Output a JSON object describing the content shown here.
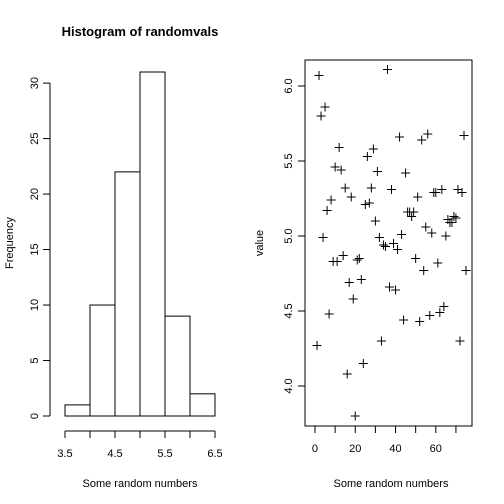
{
  "chart_data": [
    {
      "type": "bar",
      "subtype": "histogram",
      "title": "Histogram of randomvals",
      "xlabel": "Some random numbers",
      "ylabel": "Frequency",
      "bins": [
        {
          "from": 3.5,
          "to": 4.0,
          "count": 1
        },
        {
          "from": 4.0,
          "to": 4.5,
          "count": 10
        },
        {
          "from": 4.5,
          "to": 5.0,
          "count": 22
        },
        {
          "from": 5.0,
          "to": 5.5,
          "count": 31
        },
        {
          "from": 5.5,
          "to": 6.0,
          "count": 9
        },
        {
          "from": 6.0,
          "to": 6.5,
          "count": 2
        }
      ],
      "xlim": [
        3.5,
        6.5
      ],
      "ylim": [
        0,
        31
      ],
      "xticks": [
        3.5,
        4.0,
        4.5,
        5.0,
        5.5,
        6.0,
        6.5
      ],
      "xtick_labels": [
        "3.5",
        "",
        "4.5",
        "",
        "5.5",
        "",
        "6.5"
      ],
      "yticks": [
        0,
        5,
        10,
        15,
        20,
        25,
        30
      ],
      "ytick_labels": [
        "0",
        "5",
        "10",
        "15",
        "20",
        "25",
        "30"
      ],
      "frame": false
    },
    {
      "type": "scatter",
      "title": "",
      "xlabel": "Some random numbers",
      "ylabel": "value",
      "marker": "+",
      "xlim": [
        1,
        75
      ],
      "ylim": [
        3.78,
        6.11
      ],
      "xticks": [
        0,
        10,
        20,
        30,
        40,
        50,
        60,
        70
      ],
      "xtick_labels": [
        "0",
        "",
        "20",
        "",
        "40",
        "",
        "60",
        ""
      ],
      "yticks": [
        4.0,
        4.5,
        5.0,
        5.5,
        6.0
      ],
      "ytick_labels": [
        "4.0",
        "4.5",
        "5.0",
        "5.5",
        "6.0"
      ],
      "frame": true,
      "points": [
        [
          1,
          4.27
        ],
        [
          2,
          6.07
        ],
        [
          3,
          5.8
        ],
        [
          4,
          4.99
        ],
        [
          5,
          5.86
        ],
        [
          6,
          5.17
        ],
        [
          7,
          4.48
        ],
        [
          8,
          5.24
        ],
        [
          9,
          4.83
        ],
        [
          10,
          5.46
        ],
        [
          11,
          4.83
        ],
        [
          12,
          5.59
        ],
        [
          13,
          5.44
        ],
        [
          14,
          4.87
        ],
        [
          15,
          5.32
        ],
        [
          16,
          4.08
        ],
        [
          17,
          4.69
        ],
        [
          18,
          5.26
        ],
        [
          19,
          4.58
        ],
        [
          20,
          3.8
        ],
        [
          21,
          4.84
        ],
        [
          22,
          4.85
        ],
        [
          23,
          4.71
        ],
        [
          24,
          4.15
        ],
        [
          25,
          5.21
        ],
        [
          26,
          5.53
        ],
        [
          27,
          5.22
        ],
        [
          28,
          5.32
        ],
        [
          29,
          5.58
        ],
        [
          30,
          5.1
        ],
        [
          31,
          5.43
        ],
        [
          32,
          4.99
        ],
        [
          33,
          4.3
        ],
        [
          34,
          4.94
        ],
        [
          35,
          4.93
        ],
        [
          36,
          6.11
        ],
        [
          37,
          4.66
        ],
        [
          38,
          5.31
        ],
        [
          39,
          4.95
        ],
        [
          40,
          4.64
        ],
        [
          41,
          4.91
        ],
        [
          42,
          5.66
        ],
        [
          43,
          5.01
        ],
        [
          44,
          4.44
        ],
        [
          45,
          5.42
        ],
        [
          46,
          5.16
        ],
        [
          47,
          5.16
        ],
        [
          48,
          5.13
        ],
        [
          49,
          5.16
        ],
        [
          50,
          4.85
        ],
        [
          51,
          5.26
        ],
        [
          52,
          4.43
        ],
        [
          53,
          5.64
        ],
        [
          54,
          4.77
        ],
        [
          55,
          5.06
        ],
        [
          56,
          5.68
        ],
        [
          57,
          4.47
        ],
        [
          58,
          5.02
        ],
        [
          59,
          5.29
        ],
        [
          60,
          5.29
        ],
        [
          61,
          4.82
        ],
        [
          62,
          4.49
        ],
        [
          63,
          5.31
        ],
        [
          64,
          4.53
        ],
        [
          65,
          5.0
        ],
        [
          66,
          5.11
        ],
        [
          67,
          5.09
        ],
        [
          68,
          5.09
        ],
        [
          69,
          5.13
        ],
        [
          70,
          5.12
        ],
        [
          71,
          5.31
        ],
        [
          72,
          4.3
        ],
        [
          73,
          5.29
        ],
        [
          74,
          5.67
        ],
        [
          75,
          4.77
        ]
      ]
    }
  ]
}
